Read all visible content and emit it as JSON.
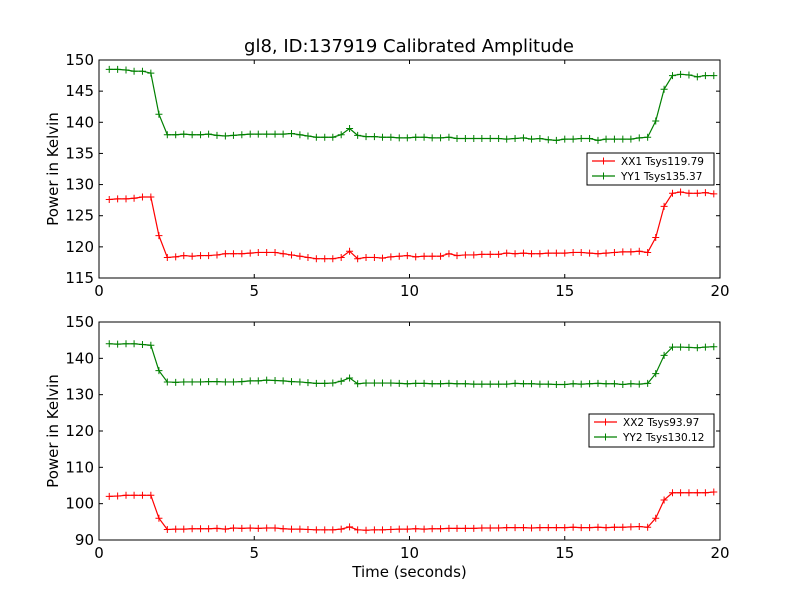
{
  "figure": {
    "title": "gl8, ID:137919 Calibrated Amplitude"
  },
  "chart_data": [
    {
      "type": "line",
      "ylabel": "Power in Kelvin",
      "xlabel": "",
      "xlim": [
        0,
        20
      ],
      "ylim": [
        115,
        150
      ],
      "xticks": [
        0,
        5,
        10,
        15,
        20
      ],
      "yticks": [
        115,
        120,
        125,
        130,
        135,
        140,
        145,
        150
      ],
      "grid": false,
      "legend_position": "center-right",
      "x": [
        0.33,
        0.6,
        0.87,
        1.13,
        1.4,
        1.67,
        1.93,
        2.2,
        2.47,
        2.73,
        3.0,
        3.27,
        3.53,
        3.8,
        4.07,
        4.33,
        4.6,
        4.87,
        5.13,
        5.4,
        5.67,
        5.93,
        6.2,
        6.47,
        6.73,
        7.0,
        7.27,
        7.53,
        7.8,
        8.07,
        8.33,
        8.6,
        8.87,
        9.13,
        9.4,
        9.67,
        9.93,
        10.2,
        10.47,
        10.73,
        11.0,
        11.27,
        11.53,
        11.8,
        12.07,
        12.33,
        12.6,
        12.87,
        13.13,
        13.4,
        13.67,
        13.93,
        14.2,
        14.47,
        14.73,
        15.0,
        15.27,
        15.53,
        15.8,
        16.07,
        16.33,
        16.6,
        16.87,
        17.13,
        17.4,
        17.67,
        17.93,
        18.2,
        18.47,
        18.73,
        19.0,
        19.27,
        19.53,
        19.8
      ],
      "series": [
        {
          "name": "XX1 Tsys119.79",
          "color": "#ff0000",
          "values": [
            127.6,
            127.7,
            127.7,
            127.8,
            128.0,
            128.0,
            121.8,
            118.3,
            118.4,
            118.6,
            118.5,
            118.6,
            118.6,
            118.7,
            118.9,
            118.9,
            118.9,
            119.0,
            119.1,
            119.1,
            119.1,
            118.9,
            118.7,
            118.5,
            118.3,
            118.1,
            118.1,
            118.1,
            118.3,
            119.3,
            118.1,
            118.3,
            118.3,
            118.2,
            118.4,
            118.5,
            118.6,
            118.4,
            118.5,
            118.5,
            118.5,
            118.9,
            118.6,
            118.7,
            118.7,
            118.8,
            118.8,
            118.8,
            119.0,
            118.9,
            119.0,
            118.9,
            118.9,
            119.0,
            119.0,
            119.0,
            119.1,
            119.1,
            119.0,
            118.9,
            119.0,
            119.1,
            119.2,
            119.2,
            119.3,
            119.1,
            121.5,
            126.5,
            128.6,
            128.8,
            128.6,
            128.6,
            128.7,
            128.5
          ]
        },
        {
          "name": "YY1 Tsys135.37",
          "color": "#008000",
          "values": [
            148.5,
            148.5,
            148.4,
            148.2,
            148.2,
            147.9,
            141.3,
            138.0,
            138.0,
            138.1,
            138.0,
            138.0,
            138.1,
            137.9,
            137.8,
            137.9,
            138.0,
            138.1,
            138.1,
            138.1,
            138.1,
            138.1,
            138.2,
            138.0,
            137.8,
            137.6,
            137.6,
            137.6,
            138.0,
            139.0,
            137.9,
            137.7,
            137.7,
            137.6,
            137.6,
            137.5,
            137.5,
            137.6,
            137.6,
            137.5,
            137.5,
            137.6,
            137.4,
            137.4,
            137.4,
            137.4,
            137.4,
            137.4,
            137.3,
            137.4,
            137.5,
            137.3,
            137.4,
            137.2,
            137.1,
            137.3,
            137.3,
            137.4,
            137.4,
            137.1,
            137.3,
            137.3,
            137.3,
            137.3,
            137.5,
            137.6,
            140.2,
            145.3,
            147.5,
            147.7,
            147.6,
            147.3,
            147.5,
            147.5
          ]
        }
      ]
    },
    {
      "type": "line",
      "ylabel": "Power in Kelvin",
      "xlabel": "Time (seconds)",
      "xlim": [
        0,
        20
      ],
      "ylim": [
        90,
        150
      ],
      "xticks": [
        0,
        5,
        10,
        15,
        20
      ],
      "yticks": [
        90,
        100,
        110,
        120,
        130,
        140,
        150
      ],
      "grid": false,
      "legend_position": "center-right",
      "x": [
        0.33,
        0.6,
        0.87,
        1.13,
        1.4,
        1.67,
        1.93,
        2.2,
        2.47,
        2.73,
        3.0,
        3.27,
        3.53,
        3.8,
        4.07,
        4.33,
        4.6,
        4.87,
        5.13,
        5.4,
        5.67,
        5.93,
        6.2,
        6.47,
        6.73,
        7.0,
        7.27,
        7.53,
        7.8,
        8.07,
        8.33,
        8.6,
        8.87,
        9.13,
        9.4,
        9.67,
        9.93,
        10.2,
        10.47,
        10.73,
        11.0,
        11.27,
        11.53,
        11.8,
        12.07,
        12.33,
        12.6,
        12.87,
        13.13,
        13.4,
        13.67,
        13.93,
        14.2,
        14.47,
        14.73,
        15.0,
        15.27,
        15.53,
        15.8,
        16.07,
        16.33,
        16.6,
        16.87,
        17.13,
        17.4,
        17.67,
        17.93,
        18.2,
        18.47,
        18.73,
        19.0,
        19.27,
        19.53,
        19.8
      ],
      "series": [
        {
          "name": "XX2 Tsys93.97",
          "color": "#ff0000",
          "values": [
            102.0,
            102.1,
            102.3,
            102.3,
            102.3,
            102.3,
            96.0,
            92.9,
            93.0,
            93.0,
            93.1,
            93.1,
            93.1,
            93.2,
            93.0,
            93.3,
            93.2,
            93.3,
            93.2,
            93.3,
            93.3,
            93.1,
            93.0,
            93.0,
            92.9,
            92.8,
            92.8,
            92.8,
            93.0,
            93.6,
            92.8,
            92.7,
            92.8,
            92.8,
            92.9,
            93.0,
            93.0,
            93.1,
            93.0,
            93.1,
            93.1,
            93.2,
            93.2,
            93.2,
            93.2,
            93.3,
            93.3,
            93.3,
            93.4,
            93.4,
            93.4,
            93.3,
            93.4,
            93.4,
            93.4,
            93.4,
            93.5,
            93.4,
            93.4,
            93.5,
            93.4,
            93.5,
            93.5,
            93.6,
            93.7,
            93.5,
            96.0,
            101.0,
            103.0,
            103.0,
            103.0,
            103.0,
            103.0,
            103.2
          ]
        },
        {
          "name": "YY2 Tsys130.12",
          "color": "#008000",
          "values": [
            144.0,
            143.9,
            144.0,
            144.0,
            143.8,
            143.6,
            136.6,
            133.5,
            133.4,
            133.5,
            133.5,
            133.5,
            133.6,
            133.6,
            133.5,
            133.5,
            133.6,
            133.8,
            133.8,
            134.0,
            133.9,
            133.8,
            133.6,
            133.5,
            133.3,
            133.1,
            133.1,
            133.2,
            133.7,
            134.6,
            133.0,
            133.2,
            133.2,
            133.2,
            133.2,
            133.1,
            133.0,
            133.1,
            133.1,
            133.0,
            133.0,
            133.1,
            133.0,
            133.0,
            132.9,
            132.9,
            132.9,
            132.9,
            132.9,
            133.1,
            133.0,
            133.0,
            132.9,
            132.9,
            132.8,
            132.8,
            133.0,
            132.9,
            133.0,
            133.1,
            133.0,
            133.0,
            132.8,
            133.0,
            132.9,
            133.1,
            135.8,
            140.8,
            143.1,
            143.1,
            143.0,
            142.9,
            143.1,
            143.2
          ]
        }
      ]
    }
  ]
}
